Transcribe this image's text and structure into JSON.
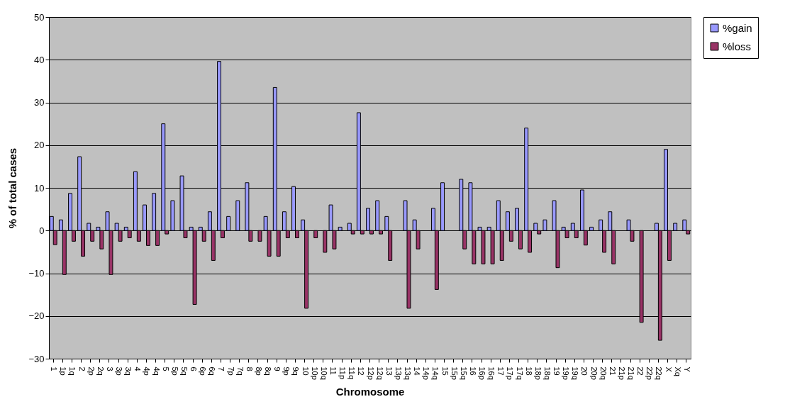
{
  "chart_data": {
    "type": "bar",
    "xlabel": "Chromosome",
    "ylabel": "% of total cases",
    "categories": [
      "1",
      "1p",
      "1q",
      "2",
      "2p",
      "2q",
      "3",
      "3p",
      "3q",
      "4",
      "4p",
      "4q",
      "5",
      "5p",
      "5q",
      "6",
      "6p",
      "6q",
      "7",
      "7p",
      "7q",
      "8",
      "8p",
      "8q",
      "9",
      "9p",
      "9q",
      "10",
      "10p",
      "10q",
      "11",
      "11p",
      "11q",
      "12",
      "12p",
      "12q",
      "13",
      "13p",
      "13q",
      "14",
      "14p",
      "14q",
      "15",
      "15p",
      "15q",
      "16",
      "16p",
      "16q",
      "17",
      "17p",
      "17q",
      "18",
      "18p",
      "18q",
      "19",
      "19p",
      "19q",
      "20",
      "20p",
      "20q",
      "21",
      "21p",
      "21q",
      "22",
      "22p",
      "22q",
      "X",
      "Xq",
      "Y"
    ],
    "series": [
      {
        "name": "%gain",
        "color": "#9999ff",
        "values": [
          3.3,
          2.5,
          8.7,
          17.3,
          1.7,
          0.8,
          4.4,
          1.7,
          0.8,
          13.8,
          6,
          8.7,
          25,
          7,
          12.8,
          0.8,
          0.8,
          4.4,
          39.6,
          3.3,
          7,
          11.2,
          null,
          3.3,
          33.5,
          4.4,
          10.3,
          2.5,
          null,
          null,
          6,
          0.8,
          1.7,
          27.6,
          5.2,
          7,
          3.3,
          null,
          7,
          2.5,
          null,
          5.2,
          11.2,
          null,
          12,
          11.2,
          0.8,
          0.8,
          7,
          4.4,
          5.2,
          24,
          1.7,
          2.5,
          7,
          0.8,
          1.7,
          9.5,
          0.8,
          2.5,
          4.4,
          null,
          2.5,
          null,
          null,
          1.7,
          19,
          1.7,
          2.5
        ]
      },
      {
        "name": "%loss",
        "color": "#993366",
        "values": [
          -3.3,
          -10.3,
          -2.5,
          -6,
          -2.5,
          -4.3,
          -10.3,
          -2.5,
          -1.7,
          -2.5,
          -3.5,
          -3.5,
          -0.8,
          null,
          -1.7,
          -17.3,
          -2.5,
          -7,
          -1.7,
          null,
          null,
          -2.5,
          -2.5,
          -6,
          -6,
          -1.7,
          -1.7,
          -18.2,
          -1.7,
          -5.1,
          -4.3,
          null,
          -0.8,
          -0.8,
          -0.8,
          -0.8,
          -7,
          null,
          -18.2,
          -4.3,
          null,
          -13.8,
          null,
          null,
          -4.3,
          -7.8,
          -7.8,
          -7.8,
          -7,
          -2.5,
          -4.3,
          -5.1,
          -0.8,
          null,
          -8.7,
          -1.7,
          -1.7,
          -3.4,
          null,
          -5.1,
          -7.8,
          null,
          -2.5,
          -21.5,
          null,
          -25.7,
          -7,
          null,
          -0.8
        ]
      }
    ],
    "ylim": [
      -30,
      50
    ],
    "yticks": [
      -30,
      -20,
      -10,
      0,
      10,
      20,
      30,
      40,
      50
    ],
    "grid": "y",
    "legend": "right"
  }
}
